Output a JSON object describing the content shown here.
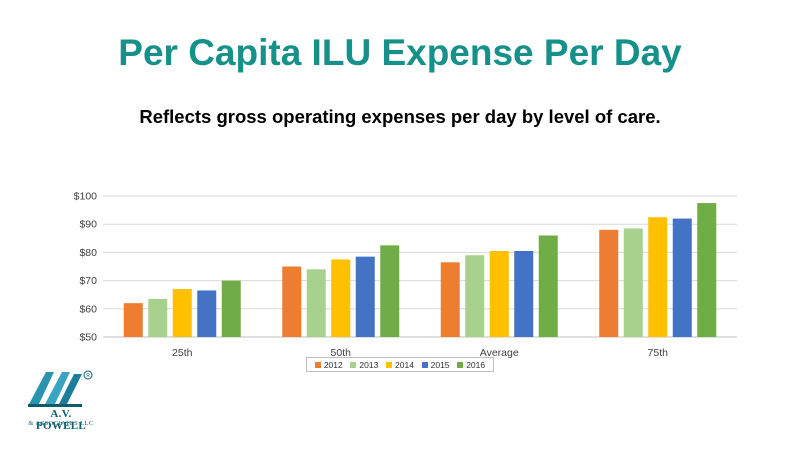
{
  "slide": {
    "title": "Per Capita ILU Expense Per Day",
    "subtitle": "Reflects gross operating expenses per day by level of care."
  },
  "logo": {
    "name": "A.V. POWELL",
    "subtitle": "& ASSOCIATES LLC"
  },
  "chart_data": {
    "type": "bar",
    "categories": [
      "25th",
      "50th",
      "Average",
      "75th"
    ],
    "series": [
      {
        "name": "2012",
        "color": "#ed7d31",
        "values": [
          62,
          75,
          76.5,
          88
        ]
      },
      {
        "name": "2013",
        "color": "#a9d18e",
        "values": [
          63.5,
          74,
          79,
          88.5
        ]
      },
      {
        "name": "2014",
        "color": "#ffc000",
        "values": [
          67,
          77.5,
          80.5,
          92.5
        ]
      },
      {
        "name": "2015",
        "color": "#4472c4",
        "values": [
          66.5,
          78.5,
          80.5,
          92
        ]
      },
      {
        "name": "2016",
        "color": "#70ad47",
        "values": [
          70,
          82.5,
          86,
          97.5
        ]
      }
    ],
    "yticks": [
      "$50",
      "$60",
      "$70",
      "$80",
      "$90",
      "$100"
    ],
    "ylim": [
      50,
      100
    ],
    "ytick_step": 10,
    "grid": true,
    "legend_position": "bottom"
  }
}
